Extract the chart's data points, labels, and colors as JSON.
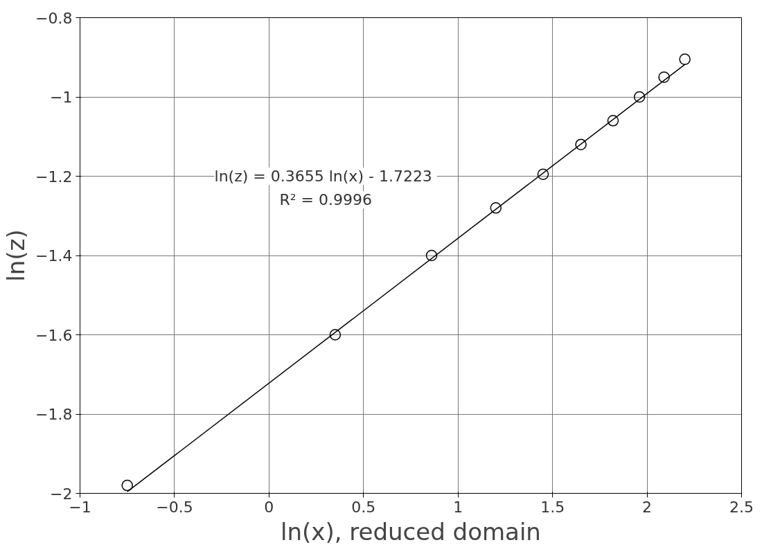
{
  "chart_data": {
    "type": "scatter",
    "xlabel": "ln(x), reduced domain",
    "ylabel": "ln(z)",
    "xlim": [
      -1,
      2.5
    ],
    "xticks": [
      -1,
      -0.5,
      0,
      0.5,
      1,
      1.5,
      2,
      2.5
    ],
    "ylim": [
      -2,
      -0.8
    ],
    "yticks": [
      -2,
      -1.8,
      -1.6,
      -1.4,
      -1.2,
      -1,
      -0.8
    ],
    "grid": true,
    "marker": "circle",
    "series": [
      {
        "color": "#000000",
        "x": [
          -0.75,
          0.35,
          0.86,
          1.2,
          1.45,
          1.65,
          1.82,
          1.96,
          2.09,
          2.2
        ],
        "values": [
          -1.98,
          -1.6,
          -1.4,
          -1.28,
          -1.195,
          -1.12,
          -1.06,
          -1.0,
          -0.95,
          -0.905
        ]
      },
      {
        "type": "line",
        "color": "#000000",
        "marker": "none",
        "x": [
          -0.75,
          2.2
        ],
        "values": [
          -1.996,
          -0.918
        ]
      }
    ],
    "annotations": [
      "ln(z) = 0.3655  ln(x) - 1.7223",
      "R² = 0.9996"
    ]
  }
}
